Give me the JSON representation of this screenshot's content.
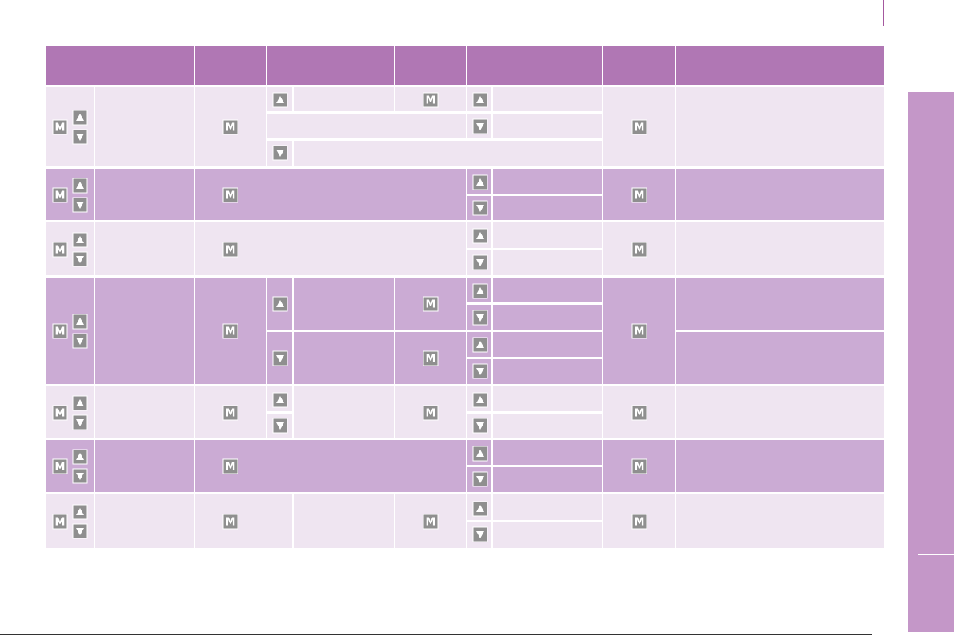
{
  "table": {
    "button_label": "M"
  }
}
